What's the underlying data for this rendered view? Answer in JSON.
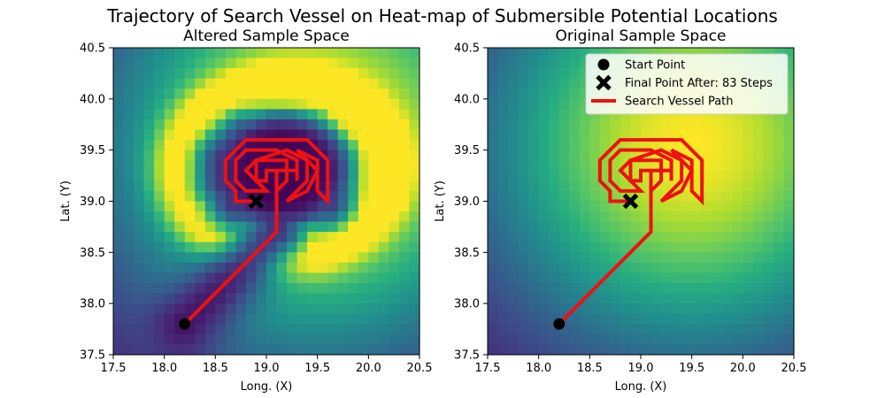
{
  "figure": {
    "title": "Trajectory of Search Vessel on Heat-map of Submersible Potential Locations"
  },
  "chart_data": [
    {
      "type": "heatmap",
      "title": "Altered Sample Space",
      "xlabel": "Long. (X)",
      "ylabel": "Lat. (Y)",
      "xlim": [
        17.5,
        20.5
      ],
      "ylim": [
        37.5,
        40.5
      ],
      "xticks": [
        "17.5",
        "18.0",
        "18.5",
        "19.0",
        "19.5",
        "20.0",
        "20.5"
      ],
      "yticks": [
        "37.5",
        "38.0",
        "38.5",
        "39.0",
        "39.5",
        "40.0",
        "40.5"
      ],
      "grid": false,
      "colormap": "viridis",
      "grid_cells": 30,
      "surface": "altered (low-probability hole around search region and along path)",
      "path": {
        "name": "Search Vessel Path",
        "color": "#ee1111",
        "points": [
          [
            18.2,
            37.8
          ],
          [
            19.1,
            38.7
          ],
          [
            19.1,
            39.3
          ],
          [
            19.0,
            39.3
          ],
          [
            19.0,
            39.2
          ],
          [
            18.9,
            39.2
          ],
          [
            18.9,
            39.4
          ],
          [
            19.2,
            39.4
          ],
          [
            19.2,
            39.2
          ],
          [
            19.1,
            39.1
          ],
          [
            19.1,
            38.9
          ],
          [
            19.1,
            39.3
          ],
          [
            19.3,
            39.3
          ],
          [
            19.3,
            39.2
          ],
          [
            19.3,
            39.4
          ],
          [
            19.1,
            39.5
          ],
          [
            18.8,
            39.5
          ],
          [
            18.7,
            39.4
          ],
          [
            18.7,
            39.2
          ],
          [
            18.8,
            39.1
          ],
          [
            19.0,
            39.1
          ],
          [
            18.8,
            39.3
          ],
          [
            18.9,
            39.4
          ],
          [
            19.2,
            39.5
          ],
          [
            19.4,
            39.4
          ],
          [
            19.4,
            39.2
          ],
          [
            19.2,
            39.0
          ],
          [
            19.4,
            39.1
          ],
          [
            19.5,
            39.3
          ],
          [
            19.3,
            39.5
          ],
          [
            19.5,
            39.4
          ],
          [
            19.5,
            39.1
          ],
          [
            19.6,
            39.0
          ],
          [
            19.6,
            39.4
          ],
          [
            19.4,
            39.6
          ],
          [
            18.8,
            39.6
          ],
          [
            18.6,
            39.4
          ],
          [
            18.6,
            39.2
          ],
          [
            18.7,
            39.1
          ],
          [
            18.7,
            39.0
          ],
          [
            18.9,
            39.0
          ]
        ],
        "start": [
          18.2,
          37.8
        ],
        "final": [
          18.9,
          39.0
        ]
      }
    },
    {
      "type": "heatmap",
      "title": "Original Sample Space",
      "xlabel": "Long. (X)",
      "ylabel": "Lat. (Y)",
      "xlim": [
        17.5,
        20.5
      ],
      "ylim": [
        37.5,
        40.5
      ],
      "xticks": [
        "17.5",
        "18.0",
        "18.5",
        "19.0",
        "19.5",
        "20.0",
        "20.5"
      ],
      "yticks": [
        "37.5",
        "38.0",
        "38.5",
        "39.0",
        "39.5",
        "40.0",
        "40.5"
      ],
      "grid": false,
      "colormap": "viridis",
      "grid_cells": 30,
      "surface": "original (single smooth peak near (19.5, 39.5))",
      "path": {
        "name": "Search Vessel Path",
        "color": "#ee1111",
        "points": [
          [
            18.2,
            37.8
          ],
          [
            19.1,
            38.7
          ],
          [
            19.1,
            39.3
          ],
          [
            19.0,
            39.3
          ],
          [
            19.0,
            39.2
          ],
          [
            18.9,
            39.2
          ],
          [
            18.9,
            39.4
          ],
          [
            19.2,
            39.4
          ],
          [
            19.2,
            39.2
          ],
          [
            19.1,
            39.1
          ],
          [
            19.1,
            38.9
          ],
          [
            19.1,
            39.3
          ],
          [
            19.3,
            39.3
          ],
          [
            19.3,
            39.2
          ],
          [
            19.3,
            39.4
          ],
          [
            19.1,
            39.5
          ],
          [
            18.8,
            39.5
          ],
          [
            18.7,
            39.4
          ],
          [
            18.7,
            39.2
          ],
          [
            18.8,
            39.1
          ],
          [
            19.0,
            39.1
          ],
          [
            18.8,
            39.3
          ],
          [
            18.9,
            39.4
          ],
          [
            19.2,
            39.5
          ],
          [
            19.4,
            39.4
          ],
          [
            19.4,
            39.2
          ],
          [
            19.2,
            39.0
          ],
          [
            19.4,
            39.1
          ],
          [
            19.5,
            39.3
          ],
          [
            19.3,
            39.5
          ],
          [
            19.5,
            39.4
          ],
          [
            19.5,
            39.1
          ],
          [
            19.6,
            39.0
          ],
          [
            19.6,
            39.4
          ],
          [
            19.4,
            39.6
          ],
          [
            18.8,
            39.6
          ],
          [
            18.6,
            39.4
          ],
          [
            18.6,
            39.2
          ],
          [
            18.7,
            39.1
          ],
          [
            18.7,
            39.0
          ],
          [
            18.9,
            39.0
          ]
        ],
        "start": [
          18.2,
          37.8
        ],
        "final": [
          18.9,
          39.0
        ]
      },
      "legend": {
        "placement": "top-right",
        "entries": [
          {
            "label": "Start Point",
            "marker": "circle"
          },
          {
            "label": "Final Point After: 83 Steps",
            "marker": "x"
          },
          {
            "label": "Search Vessel Path",
            "marker": "line"
          }
        ]
      }
    }
  ]
}
